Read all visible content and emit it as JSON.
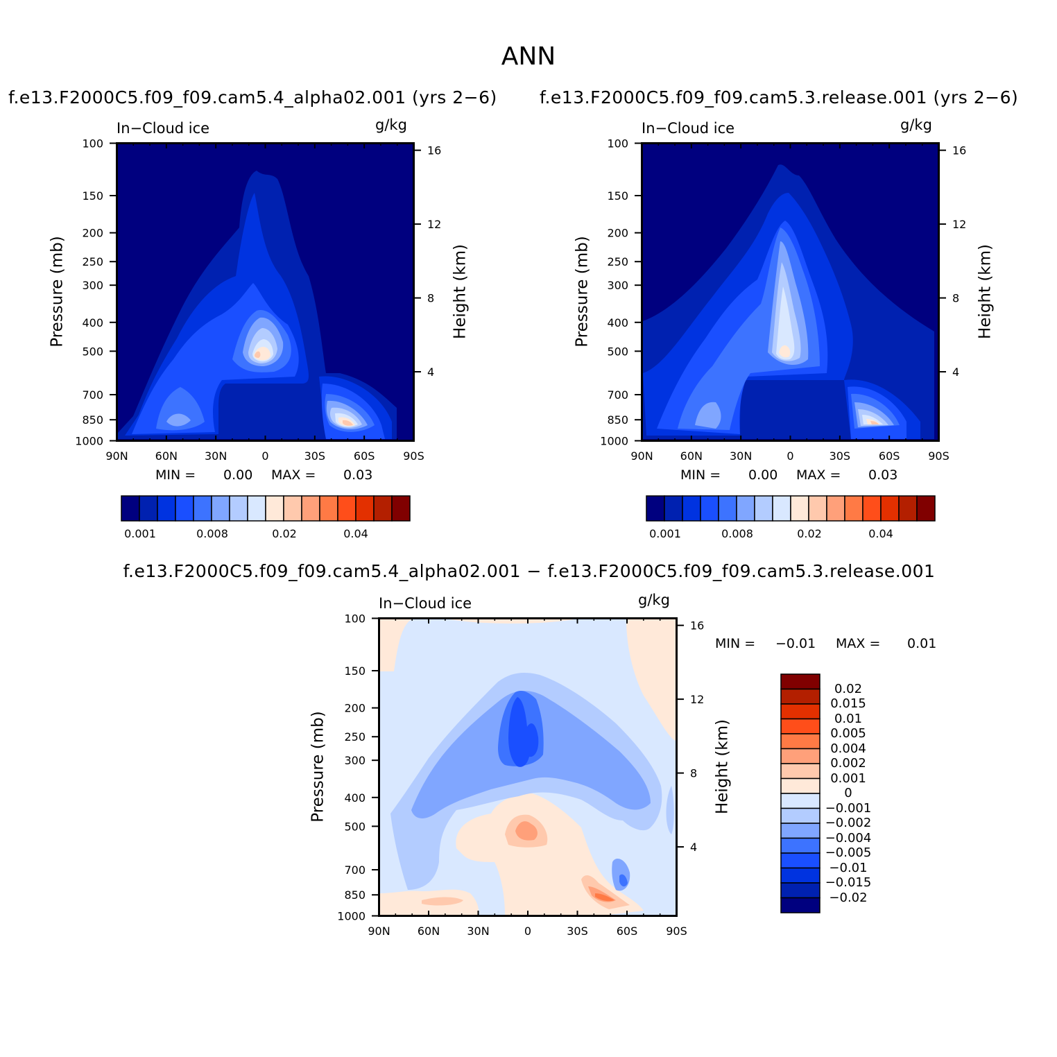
{
  "figure": {
    "title": "ANN",
    "panel1": {
      "caption": "f.e13.F2000C5.f09_f09.cam5.4_alpha02.001 (yrs 2−6)",
      "variable": "In−Cloud ice",
      "units": "g/kg",
      "min_label": "MIN =",
      "min_value": "0.00",
      "max_label": "MAX =",
      "max_value": "0.03"
    },
    "panel2": {
      "caption": "f.e13.F2000C5.f09_f09.cam5.3.release.001 (yrs 2−6)",
      "variable": "In−Cloud ice",
      "units": "g/kg",
      "min_label": "MIN =",
      "min_value": "0.00",
      "max_label": "MAX =",
      "max_value": "0.03"
    },
    "panel3": {
      "caption": "f.e13.F2000C5.f09_f09.cam5.4_alpha02.001 − f.e13.F2000C5.f09_f09.cam5.3.release.001",
      "variable": "In−Cloud ice",
      "units": "g/kg",
      "min_label": "MIN =",
      "min_value": "−0.01",
      "max_label": "MAX =",
      "max_value": "0.01"
    },
    "ylabel_left": "Pressure (mb)",
    "ylabel_right": "Height (km)"
  },
  "chart_data": [
    {
      "type": "heatmap",
      "title": "f.e13.F2000C5.f09_f09.cam5.4_alpha02.001 (yrs 2−6)",
      "variable": "In−Cloud ice",
      "units": "g/kg",
      "x_ticks": [
        "90N",
        "60N",
        "30N",
        "0",
        "30S",
        "60S",
        "90S"
      ],
      "x_range": [
        90,
        -90
      ],
      "y_ticks_pressure": [
        "100",
        "150",
        "200",
        "250",
        "300",
        "400",
        "500",
        "700",
        "850",
        "1000"
      ],
      "y_ticks_height": [
        "4",
        "8",
        "12",
        "16"
      ],
      "y_scale": "log",
      "y_range_mb": [
        1000,
        100
      ],
      "min": 0.0,
      "max": 0.03,
      "colorbar_labels": [
        "0.001",
        "0.008",
        "0.02",
        "0.04"
      ],
      "peaks": [
        {
          "lat": 5,
          "p_mb": 500,
          "value": 0.02
        },
        {
          "lat": -55,
          "p_mb": 850,
          "value": 0.03
        }
      ]
    },
    {
      "type": "heatmap",
      "title": "f.e13.F2000C5.f09_f09.cam5.3.release.001 (yrs 2−6)",
      "variable": "In−Cloud ice",
      "units": "g/kg",
      "x_ticks": [
        "90N",
        "60N",
        "30N",
        "0",
        "30S",
        "60S",
        "90S"
      ],
      "x_range": [
        90,
        -90
      ],
      "y_ticks_pressure": [
        "100",
        "150",
        "200",
        "250",
        "300",
        "400",
        "500",
        "700",
        "850",
        "1000"
      ],
      "y_ticks_height": [
        "4",
        "8",
        "12",
        "16"
      ],
      "y_scale": "log",
      "y_range_mb": [
        1000,
        100
      ],
      "min": 0.0,
      "max": 0.03,
      "colorbar_labels": [
        "0.001",
        "0.008",
        "0.02",
        "0.04"
      ],
      "peaks": [
        {
          "lat": 5,
          "p_mb": 500,
          "value": 0.02
        },
        {
          "lat": -55,
          "p_mb": 850,
          "value": 0.03
        }
      ]
    },
    {
      "type": "heatmap",
      "title": "f.e13.F2000C5.f09_f09.cam5.4_alpha02.001 − f.e13.F2000C5.f09_f09.cam5.3.release.001",
      "variable": "In−Cloud ice",
      "units": "g/kg",
      "x_ticks": [
        "90N",
        "60N",
        "30N",
        "0",
        "30S",
        "60S",
        "90S"
      ],
      "x_range": [
        90,
        -90
      ],
      "y_ticks_pressure": [
        "100",
        "150",
        "200",
        "250",
        "300",
        "400",
        "500",
        "700",
        "850",
        "1000"
      ],
      "y_ticks_height": [
        "4",
        "8",
        "12",
        "16"
      ],
      "y_scale": "log",
      "y_range_mb": [
        1000,
        100
      ],
      "min": -0.01,
      "max": 0.01,
      "colorbar_labels": [
        "0.02",
        "0.015",
        "0.01",
        "0.005",
        "0.004",
        "0.002",
        "0.001",
        "0",
        "−0.001",
        "−0.002",
        "−0.004",
        "−0.005",
        "−0.01",
        "−0.015",
        "−0.02"
      ]
    }
  ],
  "palettes": {
    "seq": [
      "#00007f",
      "#0021b0",
      "#0033e0",
      "#1a4fff",
      "#3d73ff",
      "#80a6ff",
      "#b3ccff",
      "#d9e8ff",
      "#ffe9d9",
      "#ffc9ad",
      "#ffa07a",
      "#ff7a45",
      "#ff4e1a",
      "#e33000",
      "#b31f00",
      "#800000"
    ],
    "diff": [
      "#800000",
      "#b31f00",
      "#e33000",
      "#ff4e1a",
      "#ff7a45",
      "#ffa07a",
      "#ffc9ad",
      "#ffe9d9",
      "#d9e8ff",
      "#b3ccff",
      "#80a6ff",
      "#3d73ff",
      "#1a4fff",
      "#0033e0",
      "#0021b0",
      "#00007f"
    ]
  }
}
